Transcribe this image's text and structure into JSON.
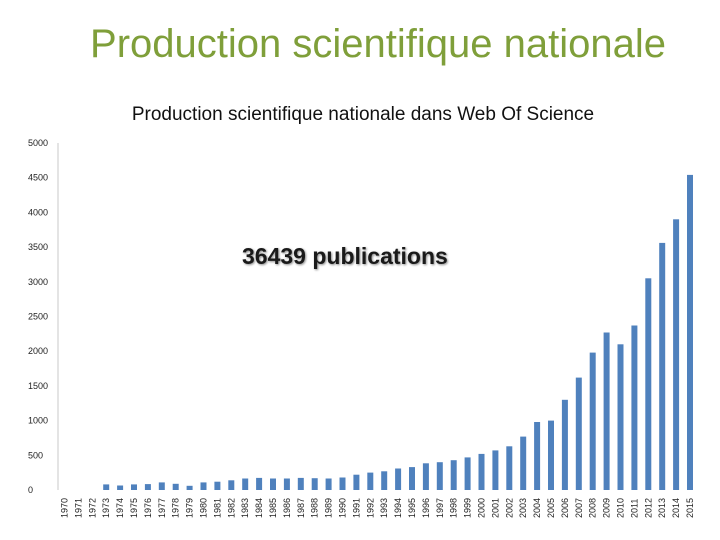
{
  "slide": {
    "title": "Production scientifique nationale"
  },
  "chart_data": {
    "type": "bar",
    "title": "Production scientifique nationale dans Web Of Science",
    "annotation": "36439 publications",
    "xlabel": "",
    "ylabel": "",
    "ylim": [
      0,
      5000
    ],
    "yticks": [
      0,
      500,
      1000,
      1500,
      2000,
      2500,
      3000,
      3500,
      4000,
      4500,
      5000
    ],
    "grid": false,
    "legend": "none",
    "bar_color": "#4f81bd",
    "categories": [
      "1970",
      "1971",
      "1972",
      "1973",
      "1974",
      "1975",
      "1976",
      "1977",
      "1978",
      "1979",
      "1980",
      "1981",
      "1982",
      "1983",
      "1984",
      "1985",
      "1986",
      "1987",
      "1988",
      "1989",
      "1990",
      "1991",
      "1992",
      "1993",
      "1994",
      "1995",
      "1996",
      "1997",
      "1998",
      "1999",
      "2000",
      "2001",
      "2002",
      "2003",
      "2004",
      "2005",
      "2006",
      "2007",
      "2008",
      "2009",
      "2010",
      "2011",
      "2012",
      "2013",
      "2014",
      "2015"
    ],
    "values": [
      0,
      0,
      0,
      80,
      65,
      80,
      85,
      110,
      90,
      60,
      110,
      120,
      140,
      165,
      175,
      165,
      165,
      175,
      170,
      165,
      180,
      220,
      250,
      270,
      310,
      330,
      385,
      400,
      430,
      470,
      520,
      570,
      630,
      770,
      980,
      1000,
      1300,
      1620,
      1980,
      2270,
      2100,
      2370,
      3050,
      3560,
      3900,
      4540
    ]
  }
}
